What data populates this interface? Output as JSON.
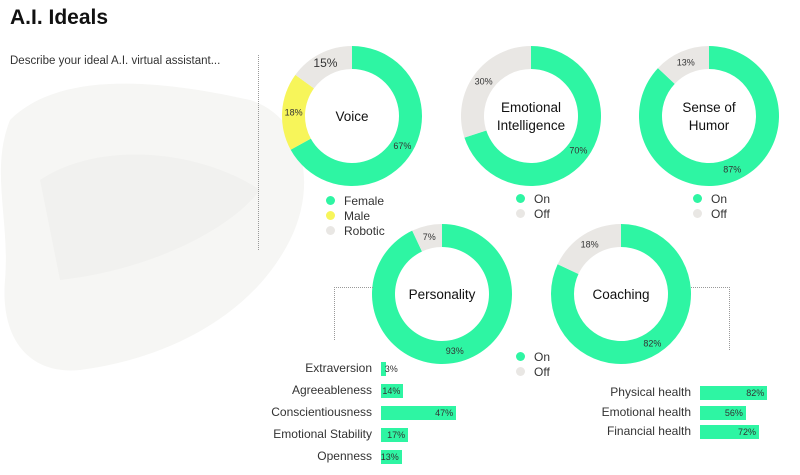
{
  "page": {
    "title": "A.I. Ideals",
    "subtitle": "Describe your ideal A.I. virtual assistant..."
  },
  "colors": {
    "green": "#2ef5a3",
    "yellow": "#f7f55a",
    "gray": "#e9e7e4"
  },
  "chart_data": [
    {
      "type": "pie",
      "name": "voice",
      "title": "Voice",
      "categories": [
        "Female",
        "Male",
        "Robotic"
      ],
      "values": [
        67,
        18,
        15
      ],
      "value_labels": [
        "67%",
        "18%",
        "15%"
      ],
      "colors": [
        "#2ef5a3",
        "#f7f55a",
        "#e9e7e4"
      ],
      "legend": [
        "Female",
        "Male",
        "Robotic"
      ]
    },
    {
      "type": "pie",
      "name": "emotional-intelligence",
      "title": "Emotional Intelligence",
      "title_lines": [
        "Emotional",
        "Intelligence"
      ],
      "categories": [
        "On",
        "Off"
      ],
      "values": [
        70,
        30
      ],
      "value_labels": [
        "70%",
        "30%"
      ],
      "colors": [
        "#2ef5a3",
        "#e9e7e4"
      ],
      "legend": [
        "On",
        "Off"
      ]
    },
    {
      "type": "pie",
      "name": "sense-of-humor",
      "title": "Sense of Humor",
      "title_lines": [
        "Sense of",
        "Humor"
      ],
      "categories": [
        "On",
        "Off"
      ],
      "values": [
        87,
        13
      ],
      "value_labels": [
        "87%",
        "13%"
      ],
      "colors": [
        "#2ef5a3",
        "#e9e7e4"
      ],
      "legend": [
        "On",
        "Off"
      ]
    },
    {
      "type": "pie",
      "name": "personality",
      "title": "Personality",
      "categories": [
        "On",
        "Off"
      ],
      "values": [
        93,
        7
      ],
      "value_labels": [
        "93%",
        "7%"
      ],
      "colors": [
        "#2ef5a3",
        "#e9e7e4"
      ],
      "legend": [
        "On",
        "Off"
      ]
    },
    {
      "type": "pie",
      "name": "coaching",
      "title": "Coaching",
      "categories": [
        "On",
        "Off"
      ],
      "values": [
        82,
        18
      ],
      "value_labels": [
        "82%",
        "18%"
      ],
      "colors": [
        "#2ef5a3",
        "#e9e7e4"
      ]
    },
    {
      "type": "bar",
      "name": "personality-traits",
      "categories": [
        "Extraversion",
        "Agreeableness",
        "Conscientiousness",
        "Emotional Stability",
        "Openness"
      ],
      "values": [
        3,
        14,
        47,
        17,
        13
      ],
      "value_labels": [
        "3%",
        "14%",
        "47%",
        "17%",
        "13%"
      ],
      "xlim": [
        0,
        100
      ]
    },
    {
      "type": "bar",
      "name": "coaching-areas",
      "categories": [
        "Physical health",
        "Emotional health",
        "Financial health"
      ],
      "values": [
        82,
        56,
        72
      ],
      "value_labels": [
        "82%",
        "56%",
        "72%"
      ],
      "xlim": [
        0,
        100
      ]
    }
  ]
}
